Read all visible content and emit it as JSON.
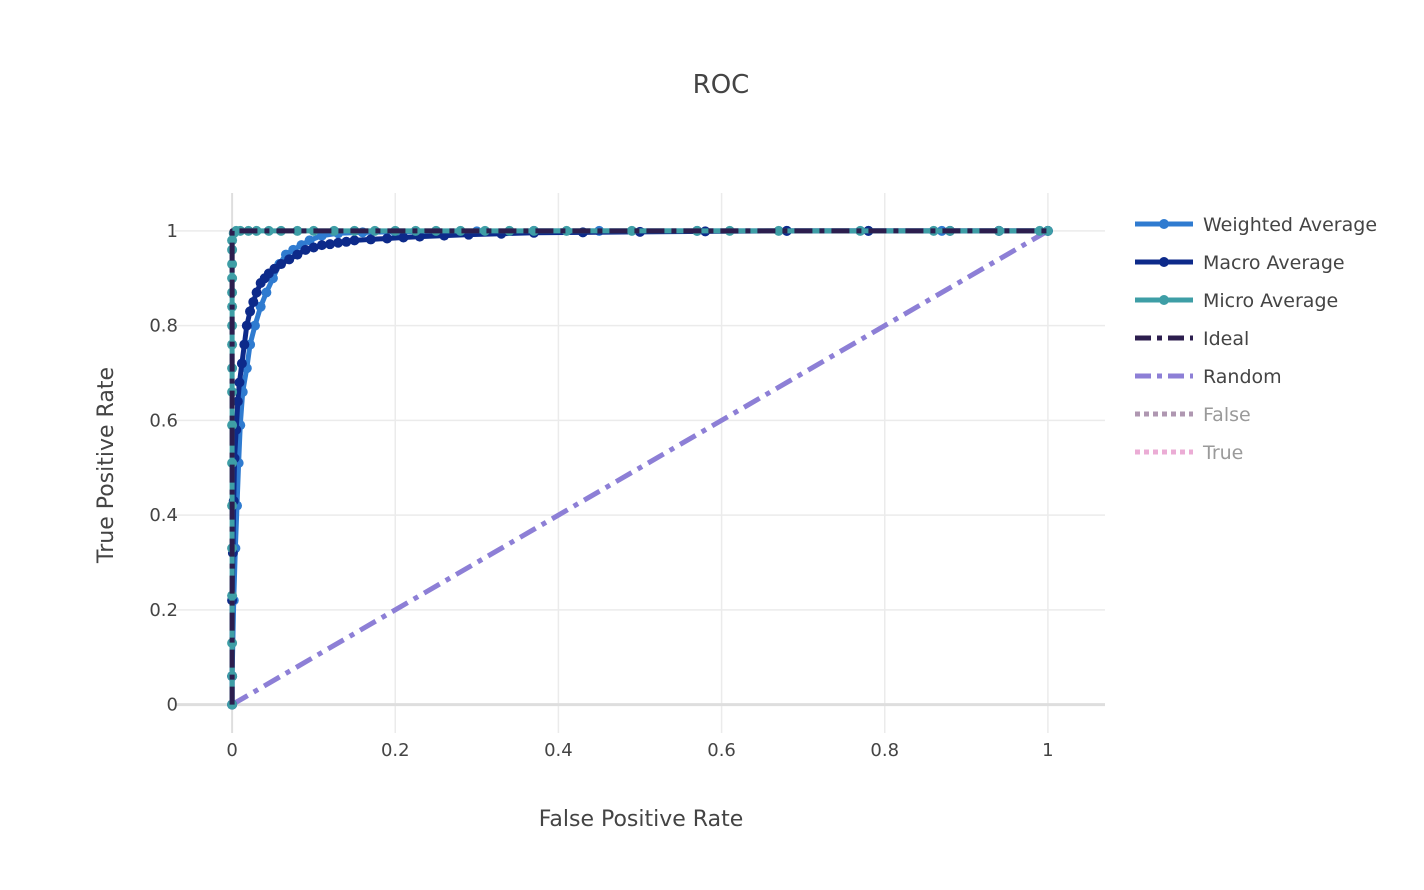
{
  "chart_data": {
    "type": "line",
    "title": "ROC",
    "xlabel": "False Positive Rate",
    "ylabel": "True Positive Rate",
    "xlim": [
      -0.07,
      1.07
    ],
    "ylim": [
      -0.06,
      1.08
    ],
    "grid": true,
    "legend_position": "right",
    "x_ticks": [
      0,
      0.2,
      0.4,
      0.6,
      0.8,
      1
    ],
    "x_tick_labels": [
      "0",
      "0.2",
      "0.4",
      "0.6",
      "0.8",
      "1"
    ],
    "y_ticks": [
      0,
      0.2,
      0.4,
      0.6,
      0.8,
      1
    ],
    "y_tick_labels": [
      "0",
      "0.2",
      "0.4",
      "0.6",
      "0.8",
      "1"
    ],
    "series": [
      {
        "name": "Weighted Average",
        "color": "#2f7bd0",
        "style": "solid-markers",
        "hidden": false,
        "x": [
          0,
          0,
          0.002,
          0.004,
          0.006,
          0.008,
          0.01,
          0.013,
          0.018,
          0.022,
          0.028,
          0.035,
          0.042,
          0.05,
          0.058,
          0.066,
          0.075,
          0.085,
          0.095,
          0.11,
          0.13,
          0.16,
          0.2,
          0.25,
          0.3,
          0.37,
          0.45,
          0.57,
          0.68,
          0.78,
          0.87,
          0.94,
          1
        ],
        "y": [
          0,
          0.06,
          0.22,
          0.33,
          0.42,
          0.51,
          0.59,
          0.66,
          0.71,
          0.76,
          0.8,
          0.84,
          0.87,
          0.9,
          0.93,
          0.95,
          0.96,
          0.97,
          0.98,
          0.99,
          0.995,
          0.997,
          0.998,
          0.999,
          0.999,
          1,
          1,
          1,
          1,
          1,
          1,
          1,
          1
        ]
      },
      {
        "name": "Macro Average",
        "color": "#0d2a8a",
        "style": "solid-markers",
        "hidden": false,
        "x": [
          0,
          0,
          0,
          0.001,
          0.002,
          0.003,
          0.005,
          0.007,
          0.009,
          0.012,
          0.015,
          0.018,
          0.022,
          0.026,
          0.03,
          0.035,
          0.04,
          0.045,
          0.052,
          0.06,
          0.07,
          0.08,
          0.09,
          0.1,
          0.11,
          0.12,
          0.13,
          0.14,
          0.15,
          0.17,
          0.19,
          0.21,
          0.23,
          0.26,
          0.29,
          0.33,
          0.37,
          0.43,
          0.5,
          0.58,
          0.68,
          0.78,
          0.88,
          0.94,
          1
        ],
        "y": [
          0,
          0.06,
          0.22,
          0.32,
          0.43,
          0.52,
          0.58,
          0.64,
          0.68,
          0.72,
          0.76,
          0.8,
          0.83,
          0.85,
          0.87,
          0.89,
          0.9,
          0.91,
          0.92,
          0.93,
          0.94,
          0.95,
          0.96,
          0.965,
          0.97,
          0.972,
          0.975,
          0.977,
          0.98,
          0.982,
          0.984,
          0.986,
          0.988,
          0.99,
          0.992,
          0.994,
          0.996,
          0.997,
          0.998,
          0.999,
          1,
          1,
          1,
          1,
          1
        ]
      },
      {
        "name": "Micro Average",
        "color": "#3e9ea6",
        "style": "solid-markers",
        "hidden": false,
        "x": [
          0,
          0,
          0,
          0,
          0,
          0,
          0,
          0,
          0,
          0,
          0,
          0,
          0,
          0,
          0,
          0,
          0,
          0,
          0.002,
          0.005,
          0.01,
          0.02,
          0.03,
          0.045,
          0.06,
          0.08,
          0.1,
          0.125,
          0.15,
          0.175,
          0.2,
          0.225,
          0.25,
          0.28,
          0.31,
          0.34,
          0.37,
          0.41,
          0.49,
          0.57,
          0.61,
          0.67,
          0.77,
          0.86,
          0.88,
          0.94,
          0.99,
          1
        ],
        "y": [
          0,
          0.06,
          0.13,
          0.23,
          0.33,
          0.42,
          0.51,
          0.59,
          0.66,
          0.71,
          0.76,
          0.8,
          0.84,
          0.87,
          0.9,
          0.93,
          0.96,
          0.98,
          0.995,
          1,
          1,
          1,
          1,
          1,
          1,
          1,
          1,
          1,
          1,
          1,
          1,
          1,
          1,
          1,
          1,
          1,
          1,
          1,
          1,
          1,
          1,
          1,
          1,
          1,
          1,
          1,
          1,
          1
        ]
      },
      {
        "name": "Ideal",
        "color": "#2c1e4e",
        "style": "dashdot",
        "hidden": false,
        "x": [
          0,
          0,
          1
        ],
        "y": [
          0,
          1,
          1
        ]
      },
      {
        "name": "Random",
        "color": "#8d7fd6",
        "style": "dashdot",
        "hidden": false,
        "x": [
          0,
          1
        ],
        "y": [
          0,
          1
        ]
      },
      {
        "name": "False",
        "color": "#957598",
        "style": "dotted",
        "hidden": true,
        "x": [],
        "y": []
      },
      {
        "name": "True",
        "color": "#e591c8",
        "style": "dotted",
        "hidden": true,
        "x": [],
        "y": []
      }
    ]
  }
}
